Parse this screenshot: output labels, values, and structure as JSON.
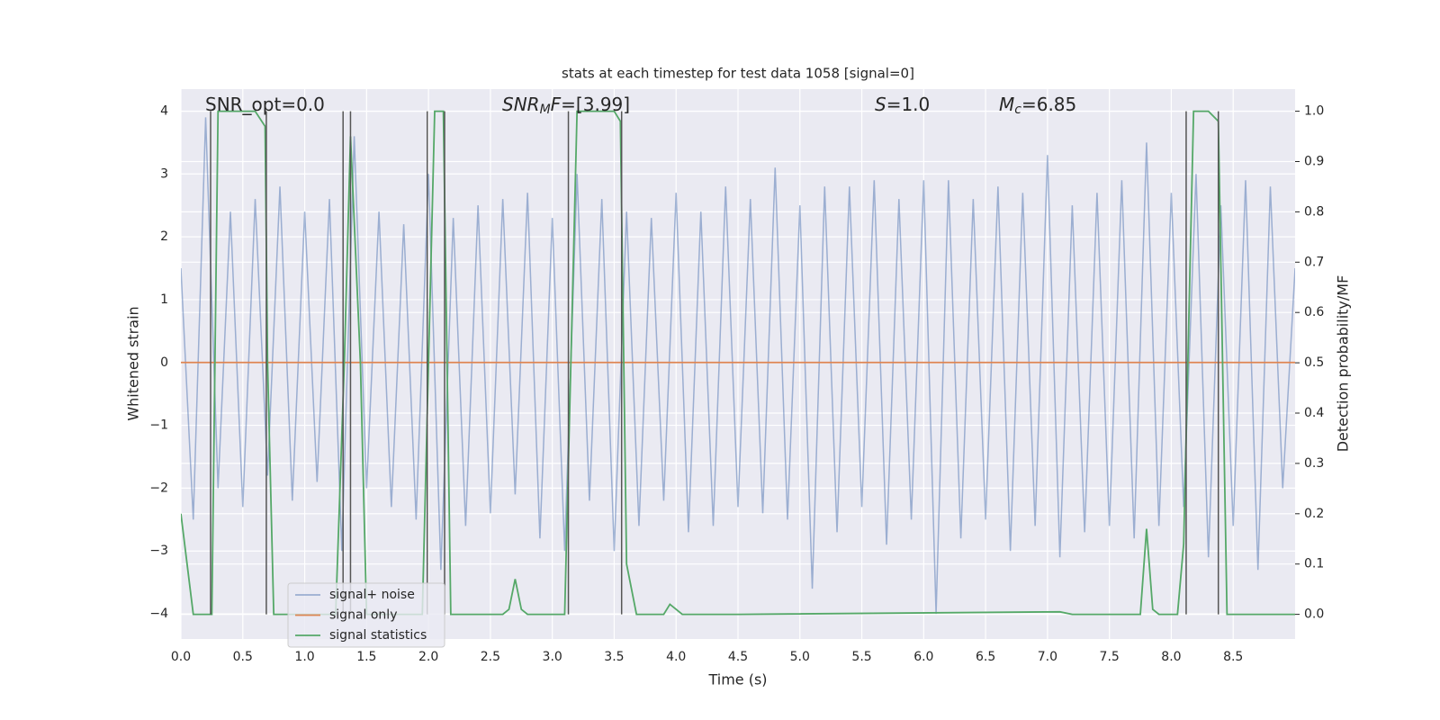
{
  "chart_data": {
    "type": "line",
    "title": "stats at each timestep for test data 1058 [signal=0]",
    "x_label": "Time (s)",
    "y_label": "Whitened strain",
    "y2_label": "Detection probability/MF",
    "xlim": [
      0,
      9.0
    ],
    "ylim": [
      -4.4,
      4.35
    ],
    "y2lim": [
      -0.049,
      1.044
    ],
    "xticks": [
      {
        "value": 0,
        "label": "0.0"
      },
      {
        "value": 0.5,
        "label": "0.5"
      },
      {
        "value": 1,
        "label": "1.0"
      },
      {
        "value": 1.5,
        "label": "1.5"
      },
      {
        "value": 2,
        "label": "2.0"
      },
      {
        "value": 2.5,
        "label": "2.5"
      },
      {
        "value": 3,
        "label": "3.0"
      },
      {
        "value": 3.5,
        "label": "3.5"
      },
      {
        "value": 4,
        "label": "4.0"
      },
      {
        "value": 4.5,
        "label": "4.5"
      },
      {
        "value": 5,
        "label": "5.0"
      },
      {
        "value": 5.5,
        "label": "5.5"
      },
      {
        "value": 6,
        "label": "6.0"
      },
      {
        "value": 6.5,
        "label": "6.5"
      },
      {
        "value": 7,
        "label": "7.0"
      },
      {
        "value": 7.5,
        "label": "7.5"
      },
      {
        "value": 8,
        "label": "8.0"
      },
      {
        "value": 8.5,
        "label": "8.5"
      }
    ],
    "yticks": [
      {
        "value": -4,
        "label": "−4"
      },
      {
        "value": -3,
        "label": "−3"
      },
      {
        "value": -2,
        "label": "−2"
      },
      {
        "value": -1,
        "label": "−1"
      },
      0,
      1,
      2,
      3,
      4
    ],
    "y2ticks": [
      {
        "value": 0,
        "label": "0.0"
      },
      {
        "value": 0.1,
        "label": "0.1"
      },
      {
        "value": 0.2,
        "label": "0.2"
      },
      {
        "value": 0.3,
        "label": "0.3"
      },
      {
        "value": 0.4,
        "label": "0.4"
      },
      {
        "value": 0.5,
        "label": "0.5"
      },
      {
        "value": 0.6,
        "label": "0.6"
      },
      {
        "value": 0.7,
        "label": "0.7"
      },
      {
        "value": 0.8,
        "label": "0.8"
      },
      {
        "value": 0.9,
        "label": "0.9"
      },
      {
        "value": 1,
        "label": "1.0"
      }
    ],
    "grid": true,
    "legend": "lower left",
    "series": [
      {
        "name": "signal+ noise",
        "color": "#4c72b0",
        "opacity": 0.5,
        "x": [
          0,
          0.1,
          0.2,
          0.3,
          0.4,
          0.5,
          0.6,
          0.7,
          0.8,
          0.9,
          1,
          1.1,
          1.2,
          1.3,
          1.4,
          1.5,
          1.6,
          1.7,
          1.8,
          1.9,
          2,
          2.1,
          2.2,
          2.3,
          2.4,
          2.5,
          2.6,
          2.7,
          2.8,
          2.9,
          3,
          3.1,
          3.2,
          3.3,
          3.4,
          3.5,
          3.6,
          3.7,
          3.8,
          3.9,
          4,
          4.1,
          4.2,
          4.3,
          4.4,
          4.5,
          4.6,
          4.7,
          4.8,
          4.9,
          5,
          5.1,
          5.2,
          5.3,
          5.4,
          5.5,
          5.6,
          5.7,
          5.8,
          5.9,
          6,
          6.1,
          6.2,
          6.3,
          6.4,
          6.5,
          6.6,
          6.7,
          6.8,
          6.9,
          7,
          7.1,
          7.2,
          7.3,
          7.4,
          7.5,
          7.6,
          7.7,
          7.8,
          7.9,
          8,
          8.1,
          8.2,
          8.3,
          8.4,
          8.5,
          8.6,
          8.7,
          8.8,
          8.9,
          9
        ],
        "values": [
          1.5,
          -2.5,
          3.9,
          -2.0,
          2.4,
          -2.3,
          2.6,
          -1.8,
          2.8,
          -2.2,
          2.4,
          -1.9,
          2.6,
          -3.0,
          3.6,
          -2.0,
          2.4,
          -2.3,
          2.2,
          -2.5,
          3.0,
          -3.3,
          2.3,
          -2.6,
          2.5,
          -2.4,
          2.6,
          -2.1,
          2.7,
          -2.8,
          2.3,
          -3.0,
          3.0,
          -2.2,
          2.6,
          -3.0,
          2.4,
          -2.6,
          2.3,
          -2.2,
          2.7,
          -2.7,
          2.4,
          -2.6,
          2.8,
          -2.3,
          2.6,
          -2.4,
          3.1,
          -2.5,
          2.5,
          -3.6,
          2.8,
          -2.7,
          2.8,
          -2.3,
          2.9,
          -2.9,
          2.6,
          -2.5,
          2.9,
          -4.0,
          2.9,
          -2.8,
          2.6,
          -2.5,
          2.8,
          -3.0,
          2.7,
          -2.6,
          3.3,
          -3.1,
          2.5,
          -2.7,
          2.7,
          -2.6,
          2.9,
          -2.8,
          3.5,
          -2.6,
          2.7,
          -2.3,
          3.0,
          -3.1,
          2.5,
          -2.6,
          2.9,
          -3.3,
          2.8,
          -2.0,
          1.5
        ]
      },
      {
        "name": "signal only",
        "color": "#dd8452",
        "opacity": 1,
        "x": [
          0,
          9.0
        ],
        "values": [
          0,
          0
        ]
      },
      {
        "name": "signal statistics",
        "color": "#55a868",
        "opacity": 1,
        "axis": "y2",
        "x": [
          0,
          0.05,
          0.1,
          0.25,
          0.3,
          0.6,
          0.68,
          0.7,
          0.75,
          0.85,
          1.25,
          1.32,
          1.37,
          1.45,
          1.5,
          1.95,
          2.0,
          2.05,
          2.12,
          2.18,
          2.6,
          2.65,
          2.7,
          2.75,
          2.8,
          3.1,
          3.15,
          3.2,
          3.5,
          3.55,
          3.6,
          3.68,
          3.9,
          3.95,
          4.05,
          4.5,
          7.1,
          7.2,
          7.75,
          7.8,
          7.85,
          7.9,
          8.05,
          8.1,
          8.18,
          8.3,
          8.38,
          8.45,
          9.0
        ],
        "values": [
          0.2,
          0.1,
          0,
          0,
          1,
          1,
          0.97,
          0.5,
          0,
          0,
          0,
          0.5,
          0.95,
          0.5,
          0,
          0,
          0.5,
          1,
          1,
          0,
          0,
          0.01,
          0.07,
          0.01,
          0,
          0,
          0.5,
          1,
          1,
          0.98,
          0.1,
          0,
          0,
          0.02,
          0,
          0,
          0.005,
          0,
          0,
          0.17,
          0.01,
          0,
          0,
          0.14,
          1,
          1,
          0.98,
          0,
          0
        ]
      }
    ],
    "vlines": {
      "color": "#555555",
      "axis": "y2",
      "ymin": 0,
      "ymax": 1,
      "x": [
        0.24,
        0.69,
        1.31,
        1.37,
        1.99,
        2.13,
        3.13,
        3.56,
        8.12,
        8.38
      ]
    },
    "annotations": [
      {
        "parts": [
          {
            "text": "SNR_opt=0.0",
            "style": "normal"
          }
        ]
      },
      {
        "parts": [
          {
            "text": "SNR",
            "style": "italic"
          },
          {
            "text": "M",
            "style": "italic-sub"
          },
          {
            "text": "F",
            "style": "italic"
          },
          {
            "text": "=[3.99]",
            "style": "normal"
          }
        ]
      },
      {
        "parts": [
          {
            "text": "S",
            "style": "italic"
          },
          {
            "text": "=1.0",
            "style": "normal"
          }
        ]
      },
      {
        "parts": [
          {
            "text": "M",
            "style": "italic"
          },
          {
            "text": "c",
            "style": "italic-sub"
          },
          {
            "text": "=6.85",
            "style": "normal"
          }
        ]
      }
    ]
  }
}
